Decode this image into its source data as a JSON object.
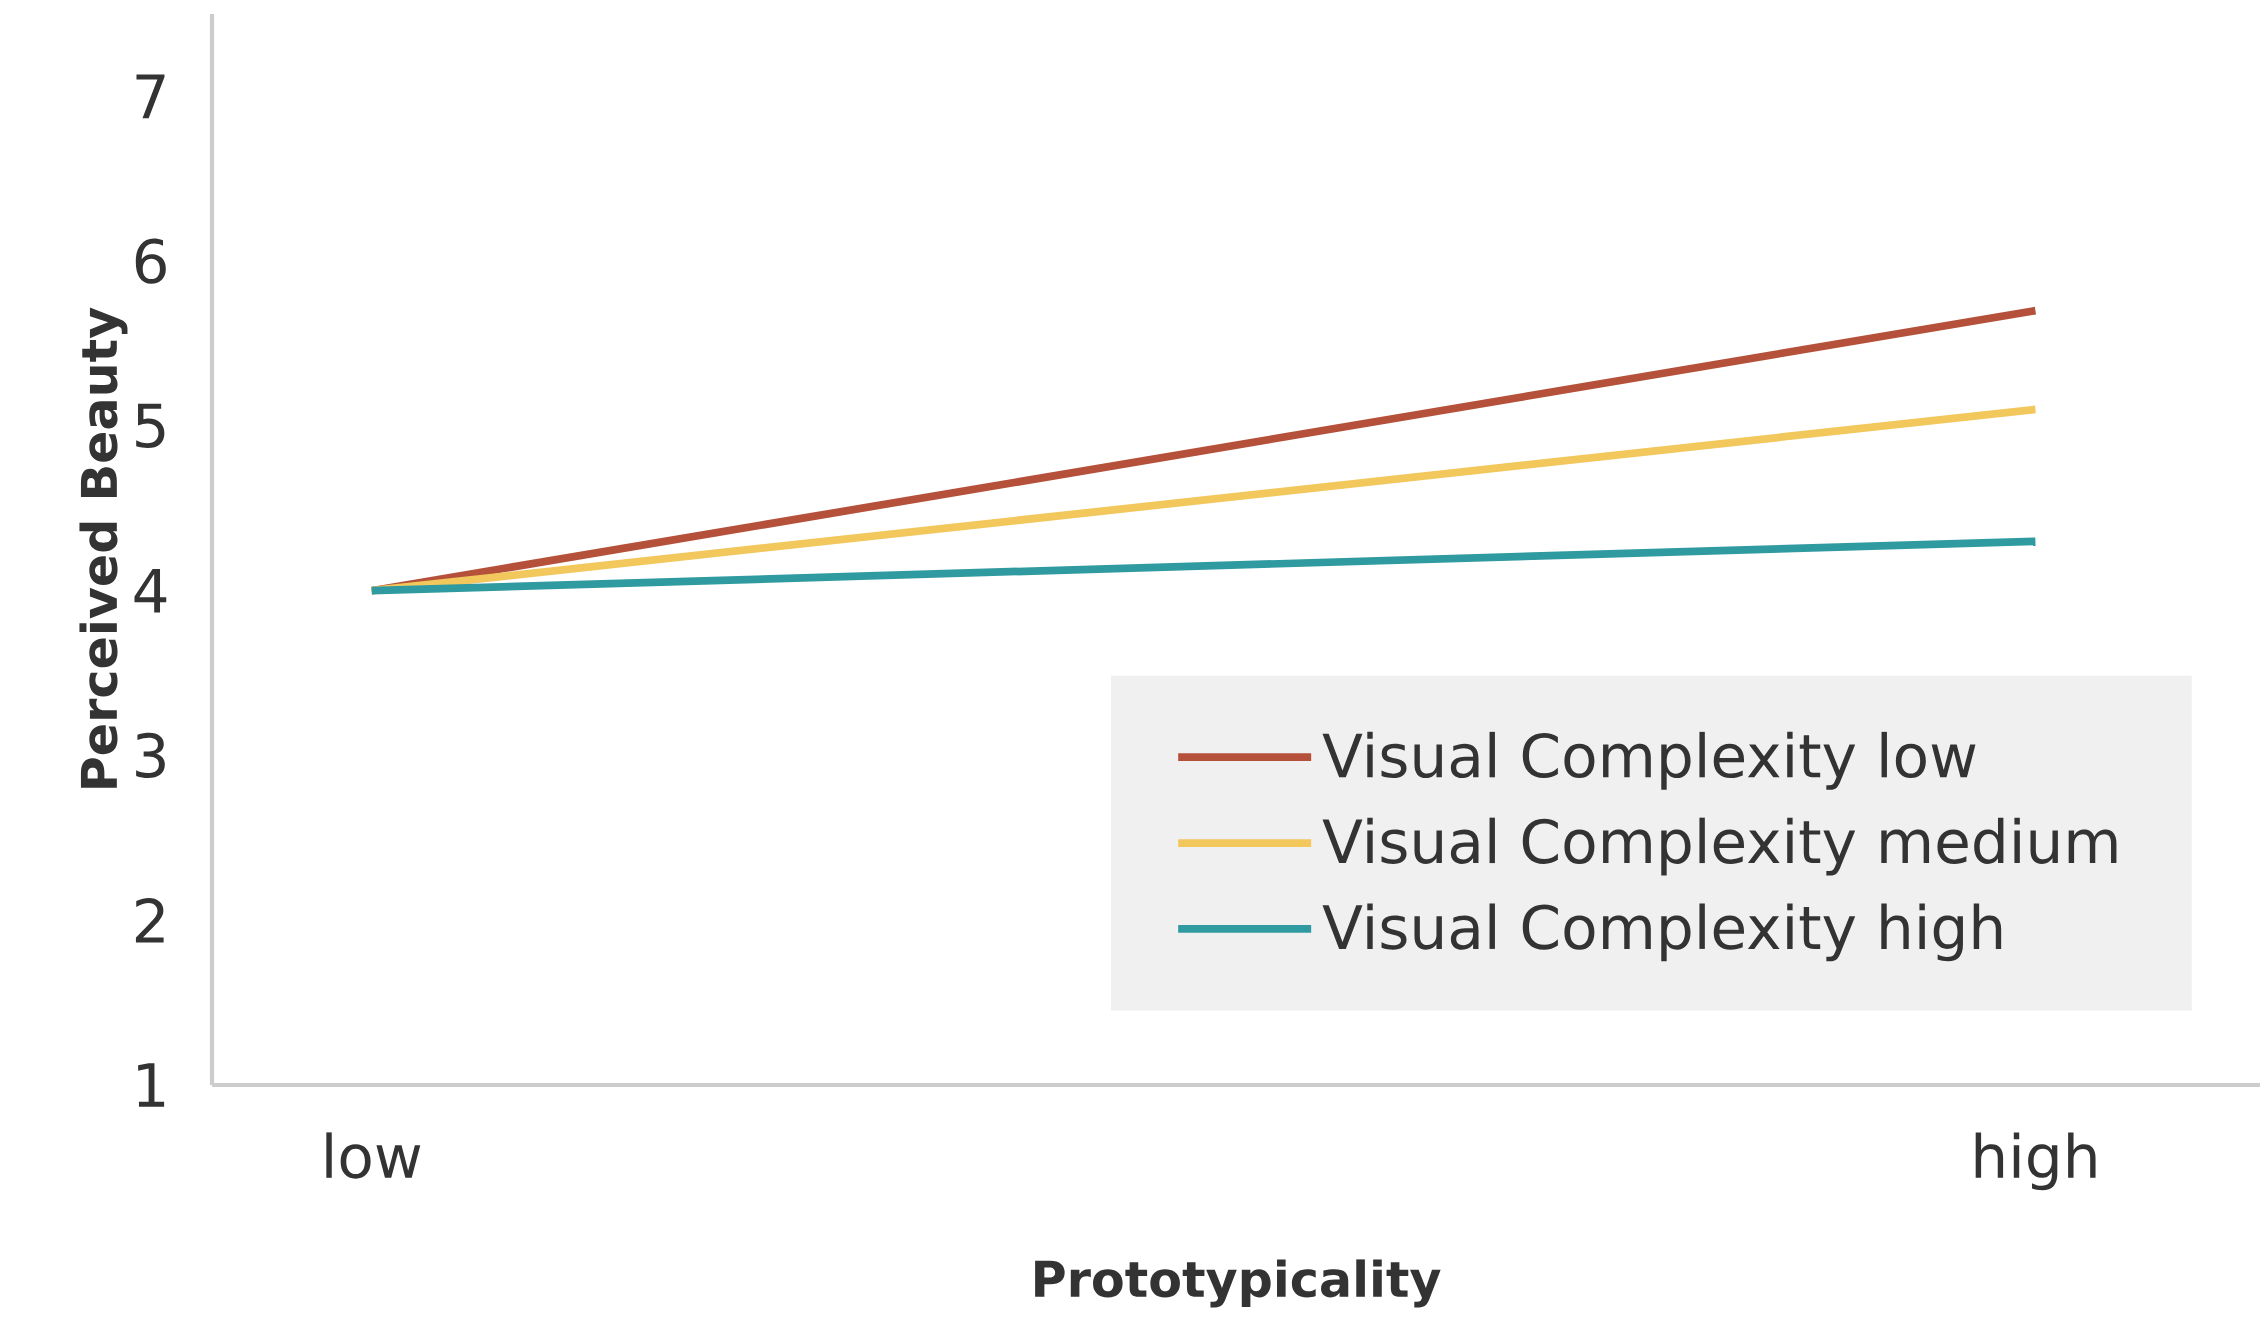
{
  "chart_data": {
    "type": "line",
    "xlabel": "Prototypicality",
    "ylabel": "Perceived Beauty",
    "categories": [
      "low",
      "high"
    ],
    "series": [
      {
        "name": "Visual Complexity low",
        "color": "#b5513a",
        "values": [
          4.0,
          5.7
        ]
      },
      {
        "name": "Visual Complexity medium",
        "color": "#f2c75c",
        "values": [
          4.0,
          5.1
        ]
      },
      {
        "name": "Visual Complexity high",
        "color": "#2f9aa0",
        "values": [
          4.0,
          4.3
        ]
      }
    ],
    "ylim": [
      1,
      7.5
    ],
    "yticks": [
      1,
      2,
      3,
      4,
      5,
      6,
      7
    ],
    "grid": false,
    "legend": "bottom right",
    "marker": "none",
    "line_style": "solid"
  }
}
